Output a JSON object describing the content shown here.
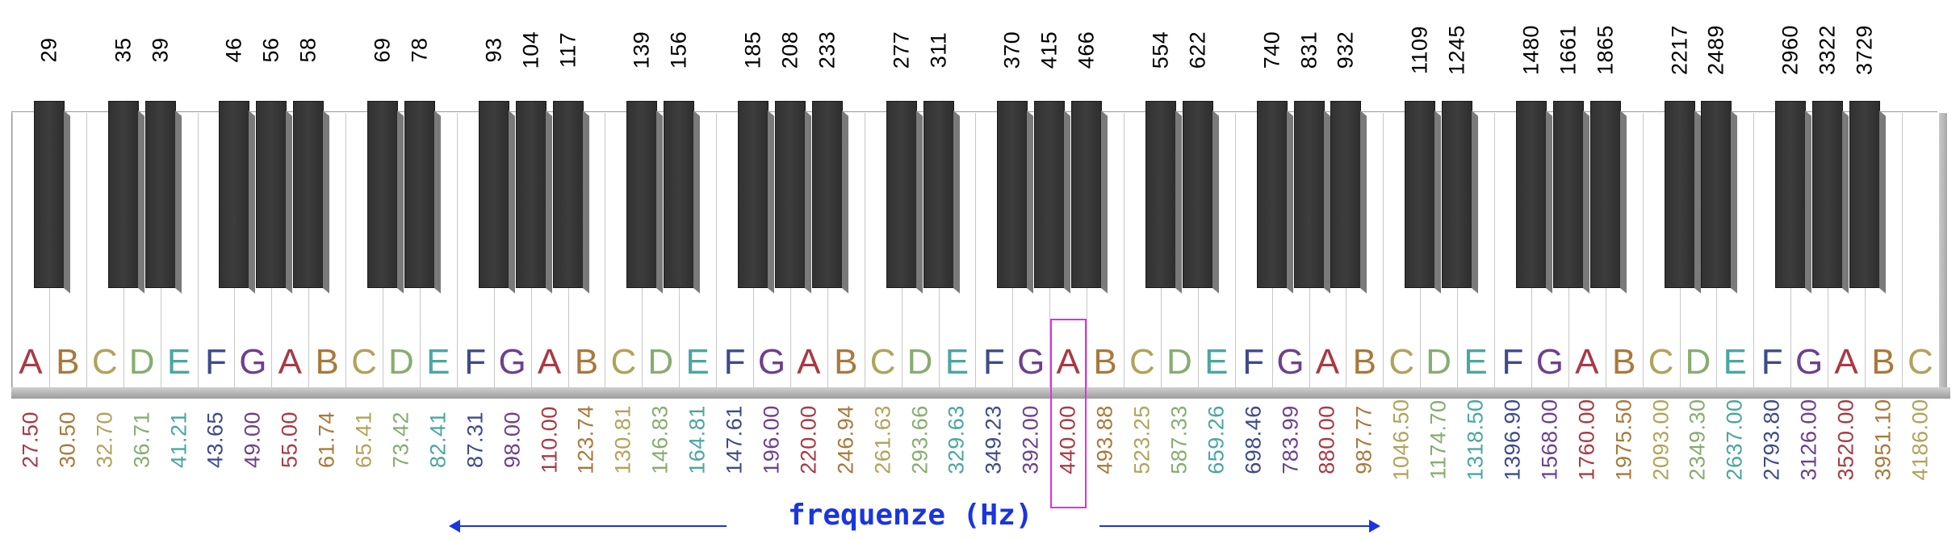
{
  "black_key_frequencies": [
    "29",
    "35",
    "39",
    "46",
    "56",
    "58",
    "69",
    "78",
    "93",
    "104",
    "117",
    "139",
    "156",
    "185",
    "208",
    "233",
    "277",
    "311",
    "370",
    "415",
    "466",
    "554",
    "622",
    "740",
    "831",
    "932",
    "1109",
    "1245",
    "1480",
    "1661",
    "1865",
    "2217",
    "2489",
    "2960",
    "3322",
    "3729"
  ],
  "white_keys": [
    {
      "note": "A",
      "freq": "27.50",
      "color": "#a83a45"
    },
    {
      "note": "B",
      "freq": "30.50",
      "color": "#a9783a"
    },
    {
      "note": "C",
      "freq": "32.70",
      "color": "#b1a35a"
    },
    {
      "note": "D",
      "freq": "36.71",
      "color": "#86ad6f"
    },
    {
      "note": "E",
      "freq": "41.21",
      "color": "#4aa6a0"
    },
    {
      "note": "F",
      "freq": "43.65",
      "color": "#3f4a8a"
    },
    {
      "note": "G",
      "freq": "49.00",
      "color": "#6e3f8f"
    },
    {
      "note": "A",
      "freq": "55.00",
      "color": "#a83a45"
    },
    {
      "note": "B",
      "freq": "61.74",
      "color": "#a9783a"
    },
    {
      "note": "C",
      "freq": "65.41",
      "color": "#b1a35a"
    },
    {
      "note": "D",
      "freq": "73.42",
      "color": "#86ad6f"
    },
    {
      "note": "E",
      "freq": "82.41",
      "color": "#4aa6a0"
    },
    {
      "note": "F",
      "freq": "87.31",
      "color": "#3f4a8a"
    },
    {
      "note": "G",
      "freq": "98.00",
      "color": "#6e3f8f"
    },
    {
      "note": "A",
      "freq": "110.00",
      "color": "#a83a45"
    },
    {
      "note": "B",
      "freq": "123.74",
      "color": "#a9783a"
    },
    {
      "note": "C",
      "freq": "130.81",
      "color": "#b1a35a"
    },
    {
      "note": "D",
      "freq": "146.83",
      "color": "#86ad6f"
    },
    {
      "note": "E",
      "freq": "164.81",
      "color": "#4aa6a0"
    },
    {
      "note": "F",
      "freq": "147.61",
      "color": "#3f4a8a"
    },
    {
      "note": "G",
      "freq": "196.00",
      "color": "#6e3f8f"
    },
    {
      "note": "A",
      "freq": "220.00",
      "color": "#a83a45"
    },
    {
      "note": "B",
      "freq": "246.94",
      "color": "#a9783a"
    },
    {
      "note": "C",
      "freq": "261.63",
      "color": "#b1a35a"
    },
    {
      "note": "D",
      "freq": "293.66",
      "color": "#86ad6f"
    },
    {
      "note": "E",
      "freq": "329.63",
      "color": "#4aa6a0"
    },
    {
      "note": "F",
      "freq": "349.23",
      "color": "#3f4a8a"
    },
    {
      "note": "G",
      "freq": "392.00",
      "color": "#6e3f8f"
    },
    {
      "note": "A",
      "freq": "440.00",
      "color": "#a83a45"
    },
    {
      "note": "B",
      "freq": "493.88",
      "color": "#a9783a"
    },
    {
      "note": "C",
      "freq": "523.25",
      "color": "#b1a35a"
    },
    {
      "note": "D",
      "freq": "587.33",
      "color": "#86ad6f"
    },
    {
      "note": "E",
      "freq": "659.26",
      "color": "#4aa6a0"
    },
    {
      "note": "F",
      "freq": "698.46",
      "color": "#3f4a8a"
    },
    {
      "note": "G",
      "freq": "783.99",
      "color": "#6e3f8f"
    },
    {
      "note": "A",
      "freq": "880.00",
      "color": "#a83a45"
    },
    {
      "note": "B",
      "freq": "987.77",
      "color": "#a9783a"
    },
    {
      "note": "C",
      "freq": "1046.50",
      "color": "#b1a35a"
    },
    {
      "note": "D",
      "freq": "1174.70",
      "color": "#86ad6f"
    },
    {
      "note": "E",
      "freq": "1318.50",
      "color": "#4aa6a0"
    },
    {
      "note": "F",
      "freq": "1396.90",
      "color": "#3f4a8a"
    },
    {
      "note": "G",
      "freq": "1568.00",
      "color": "#6e3f8f"
    },
    {
      "note": "A",
      "freq": "1760.00",
      "color": "#a83a45"
    },
    {
      "note": "B",
      "freq": "1975.50",
      "color": "#a9783a"
    },
    {
      "note": "C",
      "freq": "2093.00",
      "color": "#b1a35a"
    },
    {
      "note": "D",
      "freq": "2349.30",
      "color": "#86ad6f"
    },
    {
      "note": "E",
      "freq": "2637.00",
      "color": "#4aa6a0"
    },
    {
      "note": "F",
      "freq": "2793.80",
      "color": "#3f4a8a"
    },
    {
      "note": "G",
      "freq": "3126.00",
      "color": "#6e3f8f"
    },
    {
      "note": "A",
      "freq": "3520.00",
      "color": "#a83a45"
    },
    {
      "note": "B",
      "freq": "3951.10",
      "color": "#a9783a"
    },
    {
      "note": "C",
      "freq": "4186.00",
      "color": "#b1a35a"
    }
  ],
  "highlighted_note": {
    "note": "A",
    "freq": "440.00",
    "highlight_color": "#e030e0"
  },
  "caption": "frequenze (Hz)",
  "caption_color": "#1a35e0"
}
